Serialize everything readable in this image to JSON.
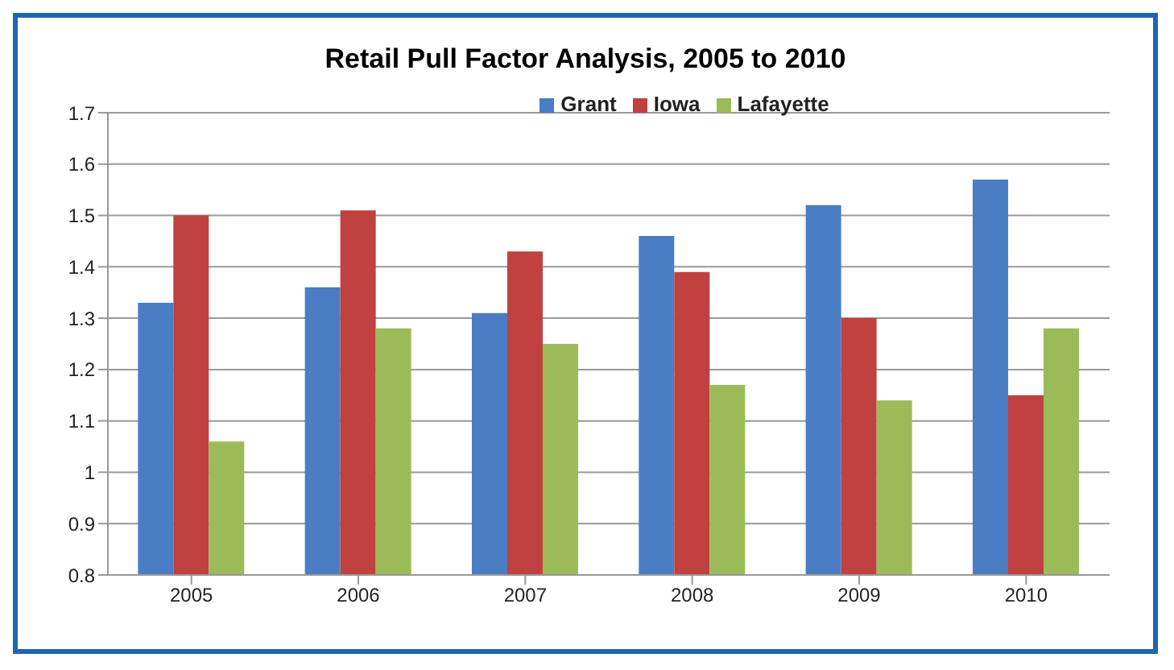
{
  "chart_data": {
    "type": "bar",
    "title": "Retail Pull Factor Analysis, 2005 to 2010",
    "categories": [
      "2005",
      "2006",
      "2007",
      "2008",
      "2009",
      "2010"
    ],
    "series": [
      {
        "name": "Grant",
        "color": "#4a7dc4",
        "values": [
          1.33,
          1.36,
          1.31,
          1.46,
          1.52,
          1.57
        ]
      },
      {
        "name": "Iowa",
        "color": "#c0413f",
        "values": [
          1.5,
          1.51,
          1.43,
          1.39,
          1.3,
          1.15
        ]
      },
      {
        "name": "Lafayette",
        "color": "#9bbb59",
        "values": [
          1.06,
          1.28,
          1.25,
          1.17,
          1.14,
          1.28
        ]
      }
    ],
    "ylim": [
      0.8,
      1.7
    ],
    "yticks": [
      0.8,
      0.9,
      1,
      1.1,
      1.2,
      1.3,
      1.4,
      1.5,
      1.6,
      1.7
    ],
    "grid": "y",
    "legend": "top"
  }
}
